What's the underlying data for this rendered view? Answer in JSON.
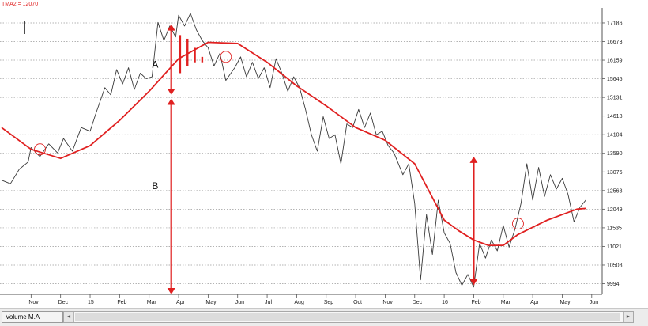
{
  "indicator": {
    "label": "TMA2 = 12070"
  },
  "status_bar": {
    "panel_label": "Volume M.A",
    "scroll_left_icon": "◄",
    "scroll_right_icon": "►"
  },
  "colors": {
    "price": "#3a3a3a",
    "tma": "#e02020",
    "annotation": "#e02020",
    "grid": "#9a9a9a",
    "axis": "#555555"
  },
  "chart_data": {
    "type": "line",
    "y_ticks": [
      17186,
      16673,
      16159,
      15645,
      15131,
      14618,
      14104,
      13590,
      13076,
      12563,
      12049,
      11535,
      11021,
      10508,
      9994
    ],
    "ylim": [
      9700,
      17600
    ],
    "x_tick_labels": [
      "Nov",
      "Dec",
      "15",
      "Feb",
      "Mar",
      "Apr",
      "May",
      "Jun",
      "Jul",
      "Aug",
      "Sep",
      "Oct",
      "Nov",
      "Dec",
      "16",
      "Feb",
      "Mar",
      "Apr",
      "May",
      "Jun"
    ],
    "x_tick_months": [
      1,
      2,
      3,
      4,
      5,
      6,
      7,
      8,
      9,
      10,
      11,
      12,
      13,
      14,
      15,
      16,
      17,
      18,
      19,
      20
    ],
    "xlim": [
      0,
      20.3
    ],
    "grid": "horizontal dotted",
    "series": [
      {
        "key": "price",
        "x": [
          0.0,
          0.3,
          0.6,
          0.9,
          1.0,
          1.3,
          1.6,
          1.9,
          2.1,
          2.4,
          2.7,
          3.0,
          3.2,
          3.5,
          3.7,
          3.9,
          4.1,
          4.3,
          4.5,
          4.7,
          4.9,
          5.1,
          5.3,
          5.5,
          5.7,
          5.9,
          6.0,
          6.2,
          6.4,
          6.6,
          6.8,
          7.0,
          7.2,
          7.4,
          7.6,
          7.9,
          8.1,
          8.3,
          8.5,
          8.7,
          8.9,
          9.1,
          9.3,
          9.5,
          9.7,
          9.9,
          10.1,
          10.3,
          10.5,
          10.7,
          10.9,
          11.1,
          11.3,
          11.5,
          11.7,
          11.9,
          12.1,
          12.3,
          12.5,
          12.7,
          12.9,
          13.1,
          13.3,
          13.6,
          13.8,
          14.0,
          14.2,
          14.4,
          14.6,
          14.8,
          15.0,
          15.2,
          15.4,
          15.6,
          15.8,
          16.0,
          16.2,
          16.4,
          16.6,
          16.8,
          17.0,
          17.2,
          17.4,
          17.6,
          17.8,
          18.0,
          18.2,
          18.4,
          18.6,
          18.8,
          19.0,
          19.2,
          19.4,
          19.6,
          19.8
        ],
        "y": [
          12850,
          12750,
          13150,
          13350,
          13750,
          13500,
          13850,
          13600,
          14000,
          13650,
          14300,
          14200,
          14700,
          15400,
          15200,
          15900,
          15500,
          15950,
          15350,
          15800,
          15650,
          15700,
          17200,
          16700,
          17100,
          16800,
          17400,
          17100,
          17450,
          17000,
          16700,
          16500,
          16000,
          16350,
          15600,
          15950,
          16250,
          15700,
          16100,
          15650,
          15950,
          15400,
          16200,
          15800,
          15300,
          15700,
          15400,
          14800,
          14100,
          13650,
          14600,
          14000,
          14100,
          13300,
          14400,
          14300,
          14800,
          14300,
          14700,
          14100,
          14200,
          13800,
          13600,
          13000,
          13300,
          12200,
          10100,
          11900,
          10800,
          12300,
          11400,
          11100,
          10300,
          9950,
          10250,
          9900,
          11100,
          10700,
          11200,
          10900,
          11600,
          11000,
          11500,
          12200,
          13300,
          12300,
          13200,
          12400,
          13000,
          12600,
          12900,
          12450,
          11700,
          12100,
          12300
        ]
      },
      {
        "key": "tma",
        "x": [
          0.0,
          1.0,
          2.0,
          3.0,
          4.0,
          5.0,
          6.0,
          7.0,
          8.0,
          9.0,
          10.0,
          11.0,
          12.0,
          13.0,
          14.0,
          15.0,
          15.5,
          16.0,
          16.5,
          17.0,
          17.5,
          18.0,
          18.5,
          19.0,
          19.5,
          19.8
        ],
        "y": [
          14300,
          13700,
          13450,
          13800,
          14500,
          15300,
          16200,
          16650,
          16620,
          16100,
          15450,
          14900,
          14300,
          13950,
          13300,
          11750,
          11450,
          11200,
          11050,
          11050,
          11350,
          11550,
          11750,
          11900,
          12050,
          12070
        ]
      }
    ],
    "annotations": {
      "labels": [
        {
          "text": "A",
          "x": 5.1,
          "y": 15950
        },
        {
          "text": "B",
          "x": 5.1,
          "y": 12600
        }
      ],
      "double_arrows": [
        {
          "x": 5.75,
          "y1": 17150,
          "y2": 15200
        },
        {
          "x": 5.75,
          "y1": 15100,
          "y2": 9700
        },
        {
          "x": 16.0,
          "y1": 13500,
          "y2": 9950
        }
      ],
      "tally_strokes": [
        {
          "x": 6.05,
          "y1": 16850,
          "y2": 15800
        },
        {
          "x": 6.3,
          "y1": 16750,
          "y2": 16000
        },
        {
          "x": 6.55,
          "y1": 16500,
          "y2": 16100
        },
        {
          "x": 6.8,
          "y1": 16250,
          "y2": 16100
        }
      ],
      "circles": [
        {
          "x": 1.3,
          "y": 13700
        },
        {
          "x": 7.6,
          "y": 16250
        },
        {
          "x": 17.5,
          "y": 11650
        }
      ]
    }
  }
}
